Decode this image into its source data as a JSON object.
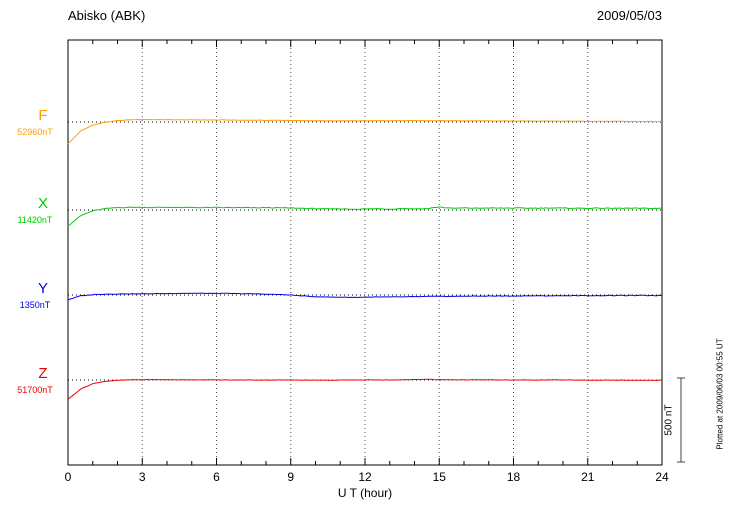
{
  "header": {
    "station": "Abisko (ABK)",
    "date": "2009/05/03"
  },
  "axis": {
    "xlabel": "U T (hour)",
    "x_ticks": [
      0,
      3,
      6,
      9,
      12,
      15,
      18,
      21,
      24
    ],
    "x_range": [
      0,
      24
    ]
  },
  "scale_bar": {
    "label": "500 nT",
    "nT": 500
  },
  "footer_note": "Plotted at 2009/06/03 00:55 UT",
  "chart_data": {
    "type": "line",
    "title": "Abisko (ABK) magnetogram",
    "subtitle": "2009/05/03",
    "xlabel": "U T (hour)",
    "x_range": [
      0,
      24
    ],
    "x_step_hours": 0.5,
    "grid": "dotted-vertical-every-3h",
    "legend_position": "left-of-axis",
    "scale_bar_nT": 500,
    "series": [
      {
        "name": "F",
        "baseline_label": "52960nT",
        "baseline_nT": 52960,
        "color": "#FFA000",
        "offsets_nT": [
          -130,
          -55,
          -18,
          -2,
          8,
          13,
          15,
          14,
          14,
          13,
          13,
          12,
          12,
          12,
          11,
          11,
          10,
          10,
          9,
          8,
          8,
          7,
          7,
          7,
          7,
          8,
          8,
          9,
          9,
          8,
          8,
          8,
          7,
          7,
          7,
          6,
          6,
          6,
          5,
          5,
          5,
          5,
          4,
          4,
          4,
          3,
          3,
          3,
          3
        ]
      },
      {
        "name": "X",
        "baseline_label": "11420nT",
        "baseline_nT": 11420,
        "color": "#00CC00",
        "offsets_nT": [
          -95,
          -35,
          -5,
          8,
          14,
          16,
          16,
          15,
          16,
          15,
          15,
          14,
          15,
          14,
          14,
          13,
          14,
          13,
          12,
          10,
          8,
          6,
          7,
          5,
          6,
          8,
          5,
          9,
          7,
          8,
          18,
          10,
          12,
          11,
          12,
          11,
          12,
          11,
          11,
          12,
          11,
          11,
          10,
          11,
          10,
          11,
          10,
          10,
          10
        ]
      },
      {
        "name": "Y",
        "baseline_label": "1350nT",
        "baseline_nT": 1350,
        "color": "#0000EE",
        "offsets_nT": [
          -28,
          -5,
          2,
          5,
          6,
          7,
          7,
          8,
          9,
          10,
          10,
          10,
          9,
          9,
          8,
          7,
          5,
          3,
          0,
          -6,
          -10,
          -12,
          -13,
          -14,
          -13,
          -12,
          -12,
          -11,
          -10,
          -9,
          -8,
          -8,
          -7,
          -7,
          -6,
          -6,
          -6,
          -5,
          -5,
          -5,
          -4,
          -4,
          -4,
          -4,
          -3,
          -3,
          -3,
          -3,
          -3
        ]
      },
      {
        "name": "Z",
        "baseline_label": "51700nT",
        "baseline_nT": 51700,
        "color": "#EE0000",
        "offsets_nT": [
          -115,
          -55,
          -22,
          -8,
          -2,
          1,
          2,
          2,
          2,
          1,
          1,
          1,
          1,
          0,
          0,
          0,
          0,
          0,
          0,
          0,
          -1,
          -1,
          -1,
          0,
          0,
          1,
          0,
          1,
          3,
          4,
          2,
          1,
          1,
          1,
          1,
          0,
          0,
          0,
          0,
          0,
          0,
          0,
          -1,
          -1,
          -1,
          -1,
          -2,
          -2,
          -1
        ]
      }
    ]
  }
}
